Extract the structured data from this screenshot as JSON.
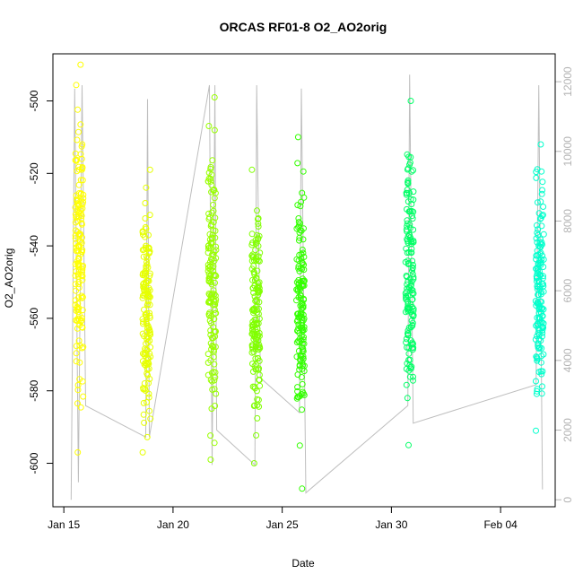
{
  "chart_data": {
    "type": "scatter",
    "title": "ORCAS RF01-8 O2_AO2orig",
    "xlabel": "Date",
    "ylabel": "O2_AO2orig",
    "xlim": [
      "2016-01-14T12:00",
      "2016-02-06T12:00"
    ],
    "ylim": [
      -612,
      -487
    ],
    "y2lim": [
      -200,
      12800
    ],
    "x_ticks": [
      {
        "date": "2016-01-15",
        "label": "Jan 15"
      },
      {
        "date": "2016-01-20",
        "label": "Jan 20"
      },
      {
        "date": "2016-01-25",
        "label": "Jan 25"
      },
      {
        "date": "2016-01-30",
        "label": "Jan 30"
      },
      {
        "date": "2016-02-04",
        "label": "Feb 04"
      }
    ],
    "y_ticks": [
      -500,
      -520,
      -540,
      -560,
      -580,
      -600
    ],
    "y2_ticks": [
      0,
      2000,
      4000,
      6000,
      8000,
      10000,
      12000
    ],
    "y2_color": "#b3b3b3",
    "grid": false,
    "flights": [
      {
        "date": "2016-01-15T17:00",
        "y_min": -597,
        "y_max": -490,
        "color": "#ffff00"
      },
      {
        "date": "2016-01-18T19:00",
        "y_min": -597,
        "y_max": -519,
        "color": "#e6ff00"
      },
      {
        "date": "2016-01-21T19:00",
        "y_min": -599,
        "y_max": -499,
        "color": "#99ff00"
      },
      {
        "date": "2016-01-23T19:00",
        "y_min": -600,
        "y_max": -519,
        "color": "#80ff00"
      },
      {
        "date": "2016-01-25T20:00",
        "y_min": -607,
        "y_max": -510,
        "color": "#33ff00"
      },
      {
        "date": "2016-01-30T20:00",
        "y_min": -595,
        "y_max": -500,
        "color": "#00ff66"
      },
      {
        "date": "2016-02-05T19:00",
        "y_min": -591,
        "y_max": -512,
        "color": "#00ffcc"
      }
    ],
    "altitude_series": {
      "color": "#bebebe",
      "points": [
        {
          "date": "2016-01-15T08:00",
          "alt": 0
        },
        {
          "date": "2016-01-15T12:00",
          "alt": 11800
        },
        {
          "date": "2016-01-15T16:00",
          "alt": 500
        },
        {
          "date": "2016-01-15T20:00",
          "alt": 11900
        },
        {
          "date": "2016-01-16T00:00",
          "alt": 2700
        },
        {
          "date": "2016-01-18T18:00",
          "alt": 1800
        },
        {
          "date": "2016-01-18T20:00",
          "alt": 11500
        },
        {
          "date": "2016-01-18T22:00",
          "alt": 1800
        },
        {
          "date": "2016-01-21T16:00",
          "alt": 11900
        },
        {
          "date": "2016-01-21T19:00",
          "alt": 1000
        },
        {
          "date": "2016-01-21T22:00",
          "alt": 11900
        },
        {
          "date": "2016-01-22T00:00",
          "alt": 2000
        },
        {
          "date": "2016-01-23T18:00",
          "alt": 1000
        },
        {
          "date": "2016-01-23T20:00",
          "alt": 11900
        },
        {
          "date": "2016-01-24T00:00",
          "alt": 3500
        },
        {
          "date": "2016-01-25T19:00",
          "alt": 2500
        },
        {
          "date": "2016-01-25T21:00",
          "alt": 11800
        },
        {
          "date": "2016-01-26T02:00",
          "alt": 200
        },
        {
          "date": "2016-01-30T18:00",
          "alt": 2700
        },
        {
          "date": "2016-01-30T20:00",
          "alt": 12200
        },
        {
          "date": "2016-01-31T00:00",
          "alt": 2200
        },
        {
          "date": "2016-02-05T15:00",
          "alt": 3300
        },
        {
          "date": "2016-02-05T18:00",
          "alt": 11900
        },
        {
          "date": "2016-02-05T22:00",
          "alt": 300
        }
      ]
    }
  }
}
